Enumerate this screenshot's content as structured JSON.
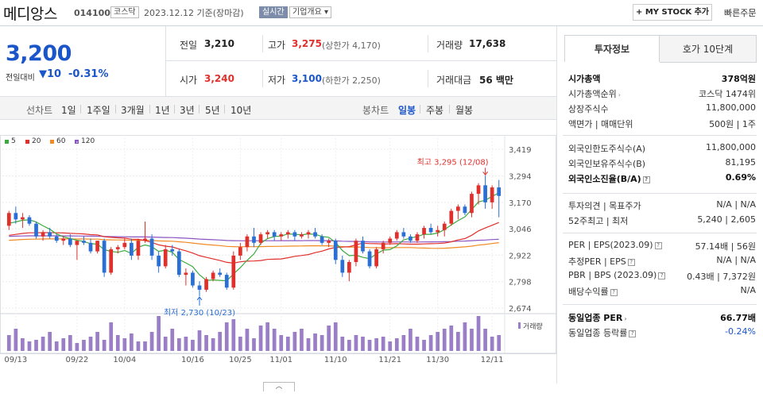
{
  "header": {
    "name": "메디앙스",
    "code": "014100",
    "market_tag": "코스닥",
    "date_text": "2023.12.12  기준(장마감)",
    "realtime_tag": "실시간",
    "company_tag": "기업개요 ▾",
    "mystock_label": "+ MY STOCK 추가",
    "quick_order": "빠른주문"
  },
  "price": {
    "current": "3,200",
    "change_label": "전일대비",
    "change_value": "▼10",
    "change_pct": "-0.31%"
  },
  "summary": {
    "prev_label": "전일",
    "prev": "3,210",
    "high_label": "고가",
    "high": "3,275",
    "high_limit": "(상한가 4,170)",
    "volume_label": "거래량",
    "volume": "17,638",
    "open_label": "시가",
    "open": "3,240",
    "low_label": "저가",
    "low": "3,100",
    "low_limit": "(하한가 2,250)",
    "amount_label": "거래대금",
    "amount": "56 백만"
  },
  "period": {
    "line_label": "선차트",
    "line_items": [
      "1일",
      "1주일",
      "3개월",
      "1년",
      "3년",
      "5년",
      "10년"
    ],
    "candle_label": "봉차트",
    "candle_items": [
      "일봉",
      "주봉",
      "월봉"
    ],
    "candle_active": "일봉"
  },
  "legend": [
    {
      "label": "5",
      "color": "#3daa3d"
    },
    {
      "label": "20",
      "color": "#e0302c"
    },
    {
      "label": "60",
      "color": "#f08a24"
    },
    {
      "label": "120",
      "color": "#8a55c0"
    }
  ],
  "chart_data": {
    "type": "candlestick",
    "y_ticks": [
      "3,419",
      "3,294",
      "3,170",
      "3,046",
      "2,922",
      "2,798",
      "2,674"
    ],
    "ylim": [
      2674,
      3419
    ],
    "x_ticks": [
      "09/13",
      "09/22",
      "10/04",
      "10/16",
      "10/25",
      "11/01",
      "11/10",
      "11/21",
      "11/30",
      "12/11"
    ],
    "annotations": {
      "high": "최고 3,295 (12/08)",
      "low": "최저 2,730 (10/23)"
    },
    "volume_label": "거래량",
    "candles": [
      [
        3060,
        3130,
        3040,
        3120
      ],
      [
        3120,
        3150,
        3070,
        3090
      ],
      [
        3090,
        3120,
        3050,
        3100
      ],
      [
        3100,
        3110,
        3060,
        3070
      ],
      [
        3070,
        3080,
        3000,
        3010
      ],
      [
        3010,
        3040,
        2990,
        3030
      ],
      [
        3030,
        3050,
        3000,
        3010
      ],
      [
        3010,
        3020,
        2980,
        2990
      ],
      [
        2990,
        3010,
        2970,
        3000
      ],
      [
        3000,
        3020,
        2960,
        2970
      ],
      [
        2970,
        2990,
        2900,
        2990
      ],
      [
        2990,
        3010,
        2970,
        2980
      ],
      [
        2980,
        3000,
        2930,
        2940
      ],
      [
        2940,
        2990,
        2930,
        2990
      ],
      [
        2990,
        3000,
        2820,
        2840
      ],
      [
        2840,
        2960,
        2830,
        2950
      ],
      [
        2950,
        2970,
        2930,
        2960
      ],
      [
        2960,
        3000,
        2950,
        2980
      ],
      [
        2980,
        3000,
        2900,
        2920
      ],
      [
        2920,
        3000,
        2900,
        2990
      ],
      [
        2990,
        3080,
        2980,
        3000
      ],
      [
        3000,
        3020,
        2900,
        2920
      ],
      [
        2920,
        2940,
        2840,
        2870
      ],
      [
        2870,
        2970,
        2860,
        2950
      ],
      [
        2950,
        2970,
        2920,
        2940
      ],
      [
        2940,
        2950,
        2820,
        2830
      ],
      [
        2830,
        2860,
        2780,
        2840
      ],
      [
        2840,
        2850,
        2770,
        2780
      ],
      [
        2780,
        2800,
        2730,
        2760
      ],
      [
        2760,
        2820,
        2750,
        2810
      ],
      [
        2810,
        2850,
        2800,
        2840
      ],
      [
        2840,
        2860,
        2820,
        2830
      ],
      [
        2830,
        2840,
        2760,
        2770
      ],
      [
        2770,
        2940,
        2760,
        2920
      ],
      [
        2920,
        2980,
        2900,
        2960
      ],
      [
        2960,
        3020,
        2940,
        3010
      ],
      [
        3010,
        3050,
        2960,
        2980
      ],
      [
        2980,
        3030,
        2970,
        3020
      ],
      [
        3020,
        3040,
        3000,
        3030
      ],
      [
        3030,
        3040,
        2990,
        3010
      ],
      [
        3010,
        3030,
        2990,
        3020
      ],
      [
        3020,
        3040,
        3000,
        3030
      ],
      [
        3030,
        3040,
        2990,
        3010
      ],
      [
        3010,
        3030,
        3000,
        3020
      ],
      [
        3020,
        3040,
        3000,
        3030
      ],
      [
        3030,
        3050,
        3000,
        3010
      ],
      [
        3010,
        3020,
        2970,
        2980
      ],
      [
        2980,
        3000,
        2960,
        2990
      ],
      [
        2990,
        3000,
        2880,
        2900
      ],
      [
        2900,
        2920,
        2820,
        2840
      ],
      [
        2840,
        2900,
        2800,
        2890
      ],
      [
        2890,
        3000,
        2870,
        2990
      ],
      [
        2990,
        3010,
        2930,
        2940
      ],
      [
        2940,
        2950,
        2860,
        2870
      ],
      [
        2870,
        2960,
        2860,
        2950
      ],
      [
        2950,
        2990,
        2930,
        2980
      ],
      [
        2980,
        3010,
        2970,
        3000
      ],
      [
        3000,
        3040,
        2990,
        3030
      ],
      [
        3030,
        3050,
        3000,
        3010
      ],
      [
        3010,
        3020,
        2980,
        2990
      ],
      [
        2990,
        3030,
        2980,
        3020
      ],
      [
        3020,
        3060,
        3000,
        3050
      ],
      [
        3050,
        3070,
        3020,
        3030
      ],
      [
        3030,
        3060,
        3010,
        3040
      ],
      [
        3040,
        3080,
        3010,
        3070
      ],
      [
        3070,
        3140,
        3060,
        3130
      ],
      [
        3130,
        3160,
        3090,
        3150
      ],
      [
        3150,
        3160,
        3110,
        3120
      ],
      [
        3120,
        3220,
        3100,
        3210
      ],
      [
        3210,
        3260,
        3160,
        3250
      ],
      [
        3250,
        3295,
        3140,
        3170
      ],
      [
        3170,
        3250,
        3140,
        3240
      ],
      [
        3240,
        3275,
        3100,
        3200
      ]
    ],
    "volumes": [
      10,
      14,
      8,
      6,
      7,
      9,
      12,
      6,
      8,
      10,
      5,
      7,
      9,
      12,
      7,
      18,
      10,
      8,
      11,
      6,
      6,
      12,
      22,
      9,
      14,
      8,
      9,
      7,
      13,
      10,
      8,
      12,
      18,
      20,
      9,
      14,
      8,
      16,
      18,
      14,
      10,
      9,
      12,
      14,
      8,
      11,
      10,
      16,
      18,
      9,
      7,
      10,
      9,
      7,
      8,
      9,
      6,
      8,
      10,
      14,
      9,
      7,
      10,
      12,
      14,
      16,
      12,
      18,
      14,
      22,
      14,
      9,
      10
    ]
  },
  "right_panel": {
    "tabs": [
      "투자정보",
      "호가 10단계"
    ],
    "rows_a": [
      {
        "l": "시가총액",
        "r": "378억원",
        "bold": true
      },
      {
        "l": "시가총액순위",
        "r": "코스닥  1474위",
        "arrow": true
      },
      {
        "l": "상장주식수",
        "r": "11,800,000"
      },
      {
        "l": "액면가 | 매매단위",
        "r": "500원  |  1주"
      }
    ],
    "rows_b": [
      {
        "l": "외국인한도주식수(A)",
        "r": "11,800,000"
      },
      {
        "l": "외국인보유주식수(B)",
        "r": "81,195"
      },
      {
        "l": "외국인소진율(B/A)",
        "r": "0.69%",
        "bold": true,
        "q": true
      }
    ],
    "rows_c": [
      {
        "l": "투자의견  |  목표주가",
        "r": "N/A  |  N/A"
      },
      {
        "l": "52주최고  |  최저",
        "r": "5,240  |  2,605"
      }
    ],
    "rows_d": [
      {
        "l": "PER  |  EPS(2023.09)",
        "r": "57.14배  |  56원",
        "q": true
      },
      {
        "l": "추정PER  |  EPS",
        "r": "N/A  |  N/A",
        "q": true
      },
      {
        "l": "PBR  |  BPS (2023.09)",
        "r": "0.43배  |  7,372원",
        "q": true
      },
      {
        "l": "배당수익률",
        "r": "N/A",
        "q": true
      }
    ],
    "rows_e": [
      {
        "l": "동일업종 PER",
        "r": "66.77배",
        "bold": true,
        "arrow": true
      },
      {
        "l": "동일업종 등락률",
        "r": "-0.24%",
        "blue": true,
        "q": true
      }
    ]
  }
}
